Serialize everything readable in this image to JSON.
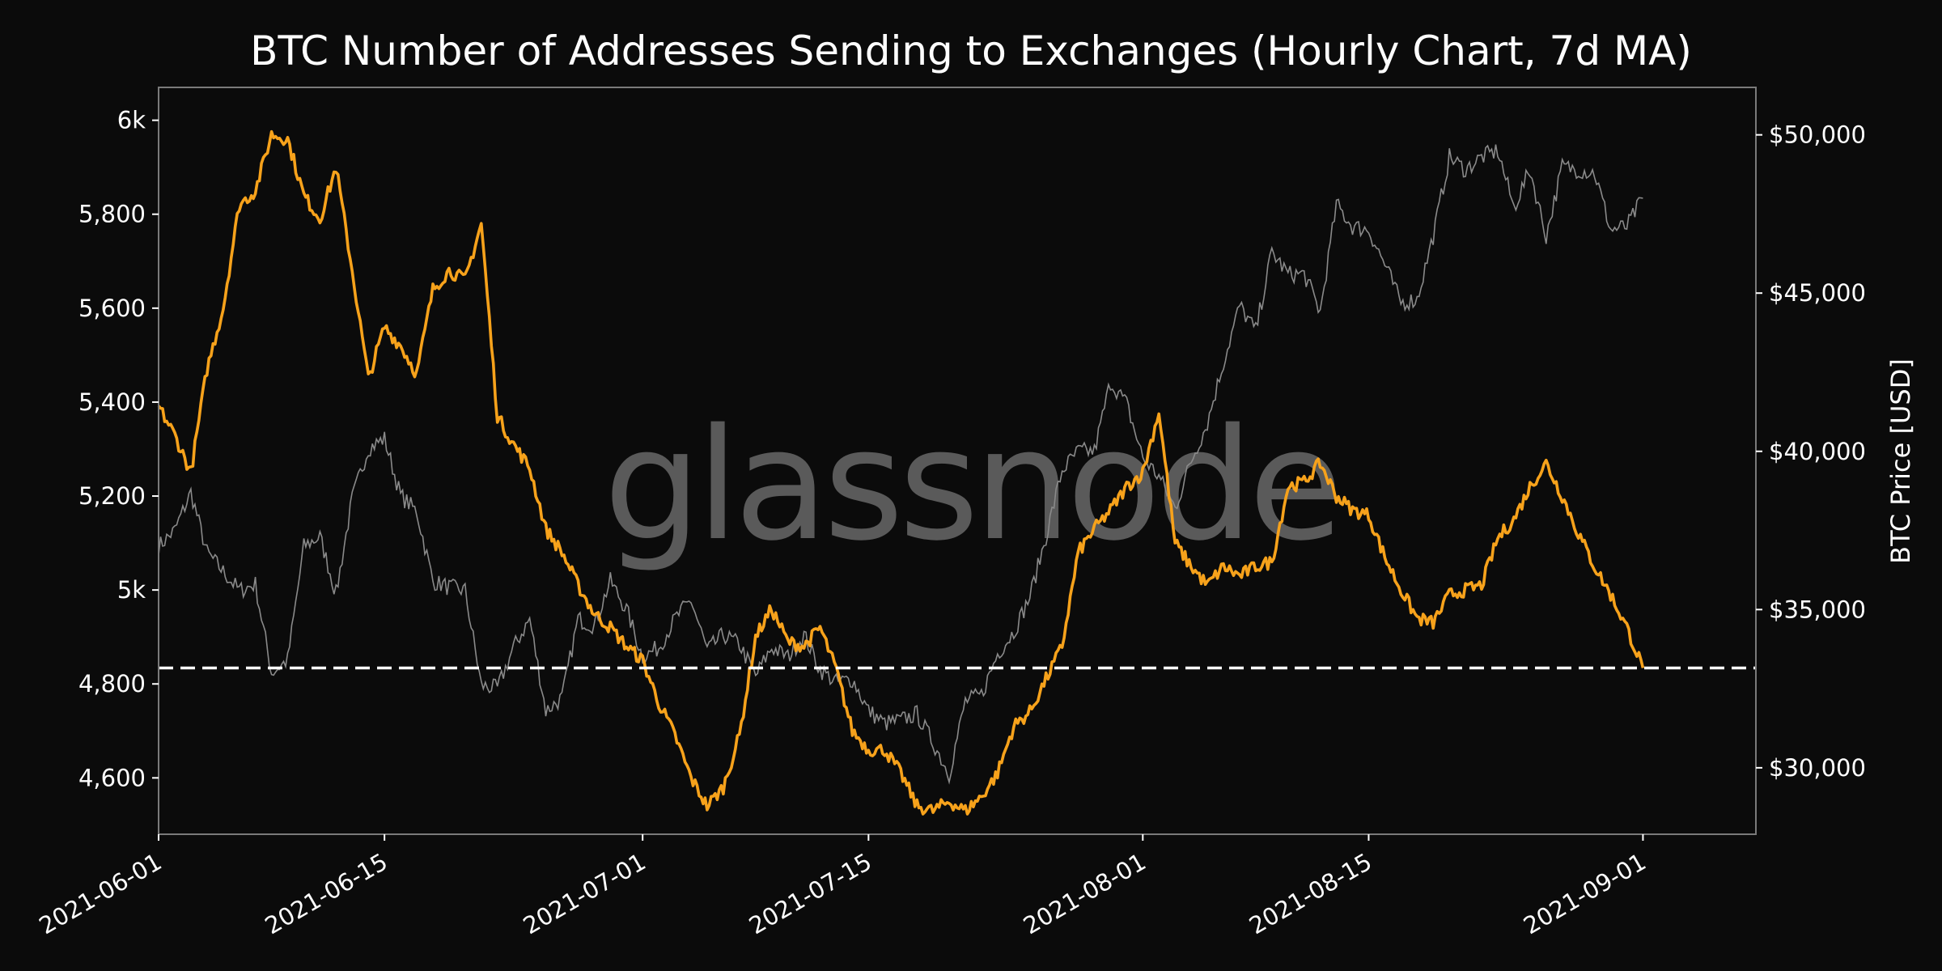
{
  "colors": {
    "background": "#0b0b0b",
    "addresses": "#f7a21b",
    "price": "#8a8a8a",
    "reference_line": "#ffffff",
    "frame": "#7a7a7a"
  },
  "watermark": "glassnode",
  "chart_data": {
    "type": "line",
    "title": "BTC Number of Addresses Sending to Exchanges (Hourly Chart, 7d MA)",
    "xlabel": "",
    "ylabel_left": "",
    "ylabel_right": "BTC Price [USD]",
    "x_start": "2021-06-01",
    "x_end": "2021-09-08",
    "x_ticks": [
      "2021-06-01",
      "2021-06-15",
      "2021-07-01",
      "2021-07-15",
      "2021-08-01",
      "2021-08-15",
      "2021-09-01"
    ],
    "y_left_range": [
      4480,
      6070
    ],
    "y_left_ticks": [
      {
        "value": 4600,
        "label": "4,600"
      },
      {
        "value": 4800,
        "label": "4,800"
      },
      {
        "value": 5000,
        "label": "5k"
      },
      {
        "value": 5200,
        "label": "5,200"
      },
      {
        "value": 5400,
        "label": "5,400"
      },
      {
        "value": 5600,
        "label": "5,600"
      },
      {
        "value": 5800,
        "label": "5,800"
      },
      {
        "value": 6000,
        "label": "6k"
      }
    ],
    "y_right_range": [
      27900,
      51500
    ],
    "y_right_ticks": [
      {
        "value": 30000,
        "label": "$30,000"
      },
      {
        "value": 35000,
        "label": "$35,000"
      },
      {
        "value": 40000,
        "label": "$40,000"
      },
      {
        "value": 45000,
        "label": "$45,000"
      },
      {
        "value": 50000,
        "label": "$50,000"
      }
    ],
    "reference_line": {
      "axis": "left",
      "value": 4834,
      "style": "dashed"
    },
    "grid": false,
    "series": [
      {
        "axis": "left",
        "points": [
          [
            "2021-06-01",
            5390
          ],
          [
            "2021-06-02",
            5330
          ],
          [
            "2021-06-03",
            5250
          ],
          [
            "2021-06-04",
            5470
          ],
          [
            "2021-06-05",
            5600
          ],
          [
            "2021-06-06",
            5820
          ],
          [
            "2021-06-07",
            5850
          ],
          [
            "2021-06-08",
            5970
          ],
          [
            "2021-06-09",
            5960
          ],
          [
            "2021-06-10",
            5840
          ],
          [
            "2021-06-11",
            5790
          ],
          [
            "2021-06-12",
            5900
          ],
          [
            "2021-06-13",
            5680
          ],
          [
            "2021-06-14",
            5450
          ],
          [
            "2021-06-15",
            5560
          ],
          [
            "2021-06-16",
            5520
          ],
          [
            "2021-06-17",
            5460
          ],
          [
            "2021-06-18",
            5640
          ],
          [
            "2021-06-19",
            5680
          ],
          [
            "2021-06-20",
            5660
          ],
          [
            "2021-06-21",
            5780
          ],
          [
            "2021-06-22",
            5370
          ],
          [
            "2021-06-23",
            5310
          ],
          [
            "2021-06-24",
            5260
          ],
          [
            "2021-06-25",
            5130
          ],
          [
            "2021-06-26",
            5080
          ],
          [
            "2021-06-27",
            5010
          ],
          [
            "2021-06-28",
            4950
          ],
          [
            "2021-06-29",
            4920
          ],
          [
            "2021-06-30",
            4880
          ],
          [
            "2021-07-01",
            4850
          ],
          [
            "2021-07-02",
            4760
          ],
          [
            "2021-07-03",
            4690
          ],
          [
            "2021-07-04",
            4600
          ],
          [
            "2021-07-05",
            4540
          ],
          [
            "2021-07-06",
            4580
          ],
          [
            "2021-07-07",
            4690
          ],
          [
            "2021-07-08",
            4900
          ],
          [
            "2021-07-09",
            4960
          ],
          [
            "2021-07-10",
            4890
          ],
          [
            "2021-07-11",
            4880
          ],
          [
            "2021-07-12",
            4920
          ],
          [
            "2021-07-13",
            4830
          ],
          [
            "2021-07-14",
            4700
          ],
          [
            "2021-07-15",
            4660
          ],
          [
            "2021-07-16",
            4660
          ],
          [
            "2021-07-17",
            4610
          ],
          [
            "2021-07-18",
            4540
          ],
          [
            "2021-07-19",
            4530
          ],
          [
            "2021-07-20",
            4550
          ],
          [
            "2021-07-21",
            4530
          ],
          [
            "2021-07-22",
            4560
          ],
          [
            "2021-07-23",
            4610
          ],
          [
            "2021-07-24",
            4710
          ],
          [
            "2021-07-25",
            4740
          ],
          [
            "2021-07-26",
            4810
          ],
          [
            "2021-07-27",
            4880
          ],
          [
            "2021-07-28",
            5080
          ],
          [
            "2021-07-29",
            5130
          ],
          [
            "2021-07-30",
            5170
          ],
          [
            "2021-07-31",
            5220
          ],
          [
            "2021-08-01",
            5250
          ],
          [
            "2021-08-02",
            5380
          ],
          [
            "2021-08-03",
            5100
          ],
          [
            "2021-08-04",
            5050
          ],
          [
            "2021-08-05",
            5010
          ],
          [
            "2021-08-06",
            5050
          ],
          [
            "2021-08-07",
            5030
          ],
          [
            "2021-08-08",
            5050
          ],
          [
            "2021-08-09",
            5060
          ],
          [
            "2021-08-10",
            5220
          ],
          [
            "2021-08-11",
            5230
          ],
          [
            "2021-08-12",
            5270
          ],
          [
            "2021-08-13",
            5200
          ],
          [
            "2021-08-14",
            5170
          ],
          [
            "2021-08-15",
            5160
          ],
          [
            "2021-08-16",
            5070
          ],
          [
            "2021-08-17",
            5000
          ],
          [
            "2021-08-18",
            4940
          ],
          [
            "2021-08-19",
            4930
          ],
          [
            "2021-08-20",
            4990
          ],
          [
            "2021-08-21",
            5000
          ],
          [
            "2021-08-22",
            5010
          ],
          [
            "2021-08-23",
            5110
          ],
          [
            "2021-08-24",
            5150
          ],
          [
            "2021-08-25",
            5220
          ],
          [
            "2021-08-26",
            5270
          ],
          [
            "2021-08-27",
            5200
          ],
          [
            "2021-08-28",
            5120
          ],
          [
            "2021-08-29",
            5050
          ],
          [
            "2021-08-30",
            4990
          ],
          [
            "2021-08-31",
            4920
          ],
          [
            "2021-09-01",
            4834
          ]
        ]
      },
      {
        "name": "BTC Price [USD]",
        "axis": "right",
        "points": [
          [
            "2021-06-01",
            37000
          ],
          [
            "2021-06-02",
            37500
          ],
          [
            "2021-06-03",
            38700
          ],
          [
            "2021-06-04",
            36800
          ],
          [
            "2021-06-05",
            36200
          ],
          [
            "2021-06-06",
            35600
          ],
          [
            "2021-06-07",
            35800
          ],
          [
            "2021-06-08",
            33000
          ],
          [
            "2021-06-09",
            33400
          ],
          [
            "2021-06-10",
            37000
          ],
          [
            "2021-06-11",
            37300
          ],
          [
            "2021-06-12",
            35500
          ],
          [
            "2021-06-13",
            38500
          ],
          [
            "2021-06-14",
            40100
          ],
          [
            "2021-06-15",
            40400
          ],
          [
            "2021-06-16",
            38600
          ],
          [
            "2021-06-17",
            38100
          ],
          [
            "2021-06-18",
            35900
          ],
          [
            "2021-06-19",
            35700
          ],
          [
            "2021-06-20",
            35600
          ],
          [
            "2021-06-21",
            32600
          ],
          [
            "2021-06-22",
            32500
          ],
          [
            "2021-06-23",
            33800
          ],
          [
            "2021-06-24",
            34700
          ],
          [
            "2021-06-25",
            31800
          ],
          [
            "2021-06-26",
            32200
          ],
          [
            "2021-06-27",
            34700
          ],
          [
            "2021-06-28",
            34500
          ],
          [
            "2021-06-29",
            35900
          ],
          [
            "2021-06-30",
            35000
          ],
          [
            "2021-07-01",
            33500
          ],
          [
            "2021-07-02",
            33800
          ],
          [
            "2021-07-03",
            34700
          ],
          [
            "2021-07-04",
            35300
          ],
          [
            "2021-07-05",
            33700
          ],
          [
            "2021-07-06",
            34200
          ],
          [
            "2021-07-07",
            33900
          ],
          [
            "2021-07-08",
            32900
          ],
          [
            "2021-07-09",
            33800
          ],
          [
            "2021-07-10",
            33500
          ],
          [
            "2021-07-11",
            34200
          ],
          [
            "2021-07-12",
            33100
          ],
          [
            "2021-07-13",
            32700
          ],
          [
            "2021-07-14",
            32800
          ],
          [
            "2021-07-15",
            31800
          ],
          [
            "2021-07-16",
            31400
          ],
          [
            "2021-07-17",
            31500
          ],
          [
            "2021-07-18",
            31700
          ],
          [
            "2021-07-19",
            30800
          ],
          [
            "2021-07-20",
            29800
          ],
          [
            "2021-07-21",
            32100
          ],
          [
            "2021-07-22",
            32300
          ],
          [
            "2021-07-23",
            33600
          ],
          [
            "2021-07-24",
            34300
          ],
          [
            "2021-07-25",
            35400
          ],
          [
            "2021-07-26",
            37300
          ],
          [
            "2021-07-27",
            39400
          ],
          [
            "2021-07-28",
            40000
          ],
          [
            "2021-07-29",
            40000
          ],
          [
            "2021-07-30",
            42200
          ],
          [
            "2021-07-31",
            41500
          ],
          [
            "2021-08-01",
            39800
          ],
          [
            "2021-08-02",
            39200
          ],
          [
            "2021-08-03",
            38200
          ],
          [
            "2021-08-04",
            39700
          ],
          [
            "2021-08-05",
            40900
          ],
          [
            "2021-08-06",
            42800
          ],
          [
            "2021-08-07",
            44600
          ],
          [
            "2021-08-08",
            43800
          ],
          [
            "2021-08-09",
            46300
          ],
          [
            "2021-08-10",
            45600
          ],
          [
            "2021-08-11",
            45600
          ],
          [
            "2021-08-12",
            44400
          ],
          [
            "2021-08-13",
            47800
          ],
          [
            "2021-08-14",
            47100
          ],
          [
            "2021-08-15",
            47000
          ],
          [
            "2021-08-16",
            45900
          ],
          [
            "2021-08-17",
            44700
          ],
          [
            "2021-08-18",
            44800
          ],
          [
            "2021-08-19",
            46800
          ],
          [
            "2021-08-20",
            49300
          ],
          [
            "2021-08-21",
            48900
          ],
          [
            "2021-08-22",
            49300
          ],
          [
            "2021-08-23",
            49500
          ],
          [
            "2021-08-24",
            47700
          ],
          [
            "2021-08-25",
            48900
          ],
          [
            "2021-08-26",
            46800
          ],
          [
            "2021-08-27",
            49000
          ],
          [
            "2021-08-28",
            48900
          ],
          [
            "2021-08-29",
            48800
          ],
          [
            "2021-08-30",
            47000
          ],
          [
            "2021-08-31",
            47100
          ],
          [
            "2021-09-01",
            48000
          ]
        ]
      }
    ]
  }
}
